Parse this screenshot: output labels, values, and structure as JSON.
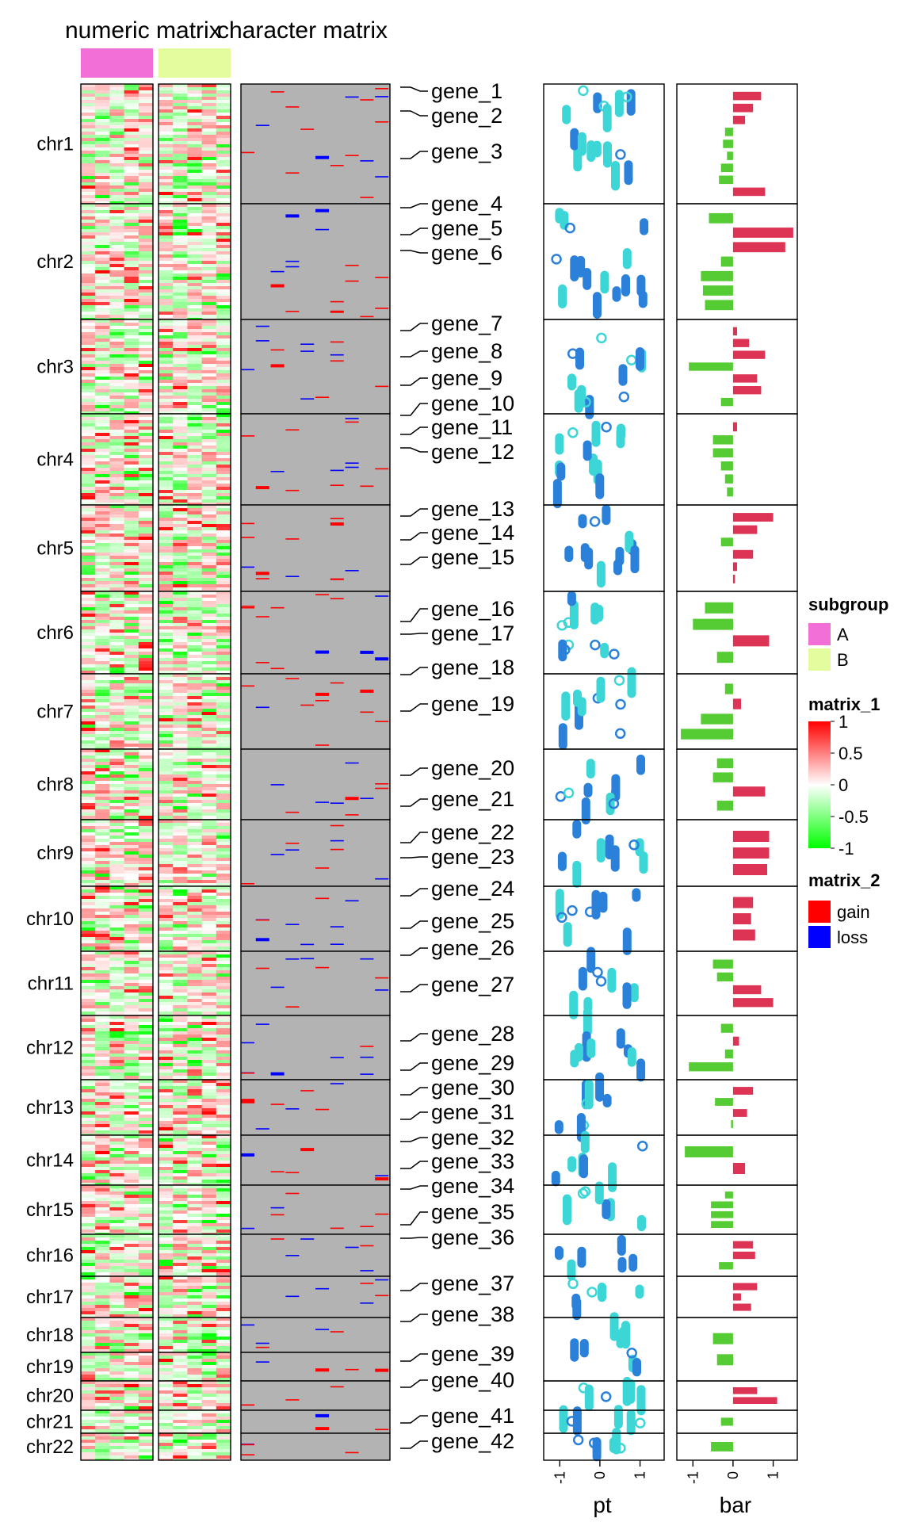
{
  "titles": {
    "numeric": "numeric matrix",
    "character": "character matrix"
  },
  "axis_labels": {
    "pt": "pt",
    "bar": "bar"
  },
  "chart_data": {
    "type": "heatmap",
    "chromosomes": [
      "chr1",
      "chr2",
      "chr3",
      "chr4",
      "chr5",
      "chr6",
      "chr7",
      "chr8",
      "chr9",
      "chr10",
      "chr11",
      "chr12",
      "chr13",
      "chr14",
      "chr15",
      "chr16",
      "chr17",
      "chr18",
      "chr19",
      "chr20",
      "chr21",
      "chr22"
    ],
    "genes": [
      {
        "label": "gene_1",
        "chr": "chr1"
      },
      {
        "label": "gene_2",
        "chr": "chr1"
      },
      {
        "label": "gene_3",
        "chr": "chr1"
      },
      {
        "label": "gene_4",
        "chr": "chr2"
      },
      {
        "label": "gene_5",
        "chr": "chr2"
      },
      {
        "label": "gene_6",
        "chr": "chr2"
      },
      {
        "label": "gene_7",
        "chr": "chr3"
      },
      {
        "label": "gene_8",
        "chr": "chr3"
      },
      {
        "label": "gene_9",
        "chr": "chr3"
      },
      {
        "label": "gene_10",
        "chr": "chr3"
      },
      {
        "label": "gene_11",
        "chr": "chr4"
      },
      {
        "label": "gene_12",
        "chr": "chr4"
      },
      {
        "label": "gene_13",
        "chr": "chr5"
      },
      {
        "label": "gene_14",
        "chr": "chr5"
      },
      {
        "label": "gene_15",
        "chr": "chr5"
      },
      {
        "label": "gene_16",
        "chr": "chr6"
      },
      {
        "label": "gene_17",
        "chr": "chr6"
      },
      {
        "label": "gene_18",
        "chr": "chr7"
      },
      {
        "label": "gene_19",
        "chr": "chr7"
      },
      {
        "label": "gene_20",
        "chr": "chr8"
      },
      {
        "label": "gene_21",
        "chr": "chr8"
      },
      {
        "label": "gene_22",
        "chr": "chr9"
      },
      {
        "label": "gene_23",
        "chr": "chr9"
      },
      {
        "label": "gene_24",
        "chr": "chr10"
      },
      {
        "label": "gene_25",
        "chr": "chr10"
      },
      {
        "label": "gene_26",
        "chr": "chr11"
      },
      {
        "label": "gene_27",
        "chr": "chr11"
      },
      {
        "label": "gene_28",
        "chr": "chr12"
      },
      {
        "label": "gene_29",
        "chr": "chr12"
      },
      {
        "label": "gene_30",
        "chr": "chr13"
      },
      {
        "label": "gene_31",
        "chr": "chr13"
      },
      {
        "label": "gene_32",
        "chr": "chr14"
      },
      {
        "label": "gene_33",
        "chr": "chr14"
      },
      {
        "label": "gene_34",
        "chr": "chr15"
      },
      {
        "label": "gene_35",
        "chr": "chr15"
      },
      {
        "label": "gene_36",
        "chr": "chr16"
      },
      {
        "label": "gene_37",
        "chr": "chr17"
      },
      {
        "label": "gene_38",
        "chr": "chr17"
      },
      {
        "label": "gene_39",
        "chr": "chr18"
      },
      {
        "label": "gene_40",
        "chr": "chr20"
      },
      {
        "label": "gene_41",
        "chr": "chr21"
      },
      {
        "label": "gene_42",
        "chr": "chr22"
      }
    ],
    "subgroup_legend": {
      "title": "subgroup",
      "items": [
        {
          "label": "A",
          "color": "#f26fd7"
        },
        {
          "label": "B",
          "color": "#e2fc9e"
        }
      ]
    },
    "matrix_1_legend": {
      "title": "matrix_1",
      "ticks": [
        "1",
        "0.5",
        "0",
        "-0.5",
        "-1"
      ],
      "colors": {
        "high": "#ff0000",
        "mid": "#ffffff",
        "low": "#00ff00"
      }
    },
    "matrix_2_legend": {
      "title": "matrix_2",
      "items": [
        {
          "label": "gain",
          "color": "#ff0000"
        },
        {
          "label": "loss",
          "color": "#0000ff"
        }
      ]
    },
    "pt": {
      "xlim": [
        -1.4,
        1.6
      ],
      "ticks": [
        "-1",
        "0",
        "1"
      ],
      "colors": [
        "#2b80d9",
        "#3dd6d6"
      ]
    },
    "bar": {
      "xlim": [
        -1.4,
        1.6
      ],
      "ticks": [
        "-1",
        "0",
        "1"
      ],
      "positive_color": "#dd3355",
      "negative_color": "#55cc33",
      "panel_bars": [
        [
          0.7,
          0.5,
          0.3,
          -0.2,
          -0.25,
          -0.15,
          -0.3,
          -0.35,
          0.8
        ],
        [
          -0.6,
          1.5,
          1.3,
          -0.3,
          -0.8,
          -0.75,
          -0.7
        ],
        [
          0.1,
          0.4,
          0.8,
          -1.1,
          0.6,
          0.7,
          -0.3
        ],
        [
          0.1,
          -0.5,
          -0.5,
          -0.3,
          -0.2,
          -0.15
        ],
        [
          1.0,
          0.6,
          -0.3,
          0.5,
          0.1,
          0.05
        ],
        [
          -0.7,
          -1.0,
          0.9,
          -0.4
        ],
        [
          -0.2,
          0.2,
          -0.8,
          -1.3
        ],
        [
          -0.4,
          -0.5,
          0.8,
          -0.4
        ],
        [
          0.9,
          0.9,
          0.85
        ],
        [
          0.5,
          0.45,
          0.55
        ],
        [
          -0.5,
          -0.4,
          0.7,
          1.0
        ],
        [
          -0.3,
          0.15,
          -0.2,
          -1.1
        ],
        [
          0.5,
          -0.45,
          0.35,
          -0.05
        ],
        [
          -1.2,
          0.3
        ],
        [
          -0.2,
          -0.55,
          -0.55,
          -0.55
        ],
        [
          0.5,
          0.55,
          -0.35
        ],
        [
          0.6,
          0.2,
          0.45
        ],
        [
          -0.5,
          -0.4
        ],
        [
          0.6,
          1.1
        ],
        [
          -0.3
        ],
        [
          -0.55
        ]
      ]
    }
  }
}
